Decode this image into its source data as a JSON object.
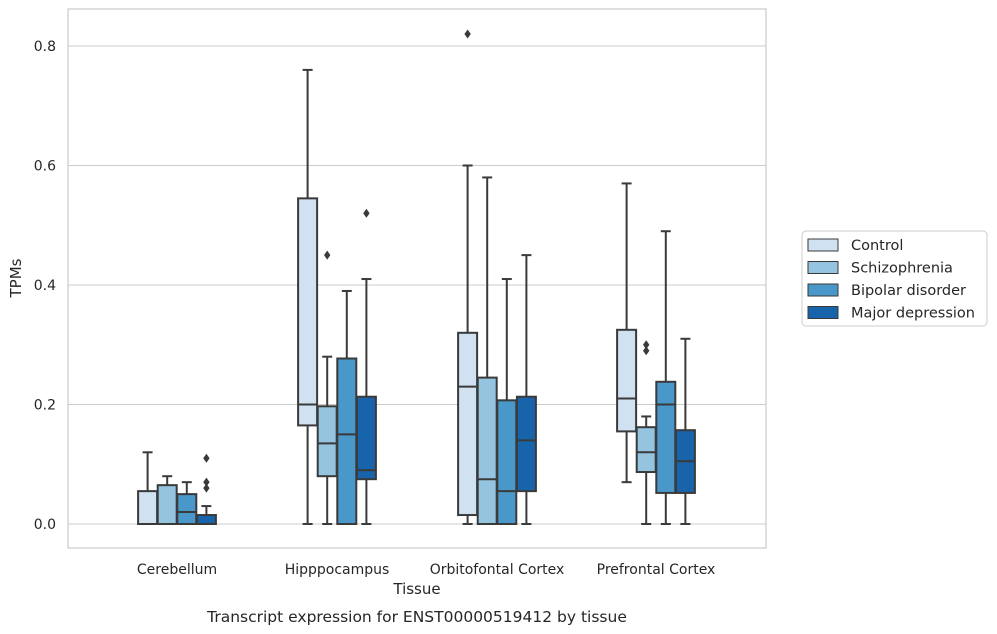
{
  "chart_data": {
    "type": "box",
    "xlabel": "Tissue",
    "ylabel": "TPMs",
    "caption": "Transcript expression for ENST00000519412 by tissue",
    "ylim": [
      -0.04,
      0.862
    ],
    "yticks": [
      "0.0",
      "0.2",
      "0.4",
      "0.6",
      "0.8"
    ],
    "ytick_values": [
      0.0,
      0.2,
      0.4,
      0.6,
      0.8
    ],
    "grid": "horizontal",
    "legend_position": "right-outside",
    "categories": [
      "Cerebellum",
      "Hipppocampus",
      "Orbitofontal Cortex",
      "Prefrontal Cortex"
    ],
    "series": [
      {
        "name": "Control",
        "color": "#d0e1f2",
        "boxes": [
          {
            "whisker_low": 0.0,
            "q1": 0.0,
            "median": 0.0,
            "q3": 0.055,
            "whisker_high": 0.12,
            "outliers": []
          },
          {
            "whisker_low": 0.0,
            "q1": 0.165,
            "median": 0.2,
            "q3": 0.545,
            "whisker_high": 0.76,
            "outliers": []
          },
          {
            "whisker_low": 0.0,
            "q1": 0.015,
            "median": 0.23,
            "q3": 0.32,
            "whisker_high": 0.6,
            "outliers": [
              0.82
            ]
          },
          {
            "whisker_low": 0.07,
            "q1": 0.155,
            "median": 0.21,
            "q3": 0.325,
            "whisker_high": 0.57,
            "outliers": []
          }
        ]
      },
      {
        "name": "Schizophrenia",
        "color": "#94c4df",
        "boxes": [
          {
            "whisker_low": 0.0,
            "q1": 0.0,
            "median": 0.0,
            "q3": 0.065,
            "whisker_high": 0.08,
            "outliers": []
          },
          {
            "whisker_low": 0.0,
            "q1": 0.08,
            "median": 0.135,
            "q3": 0.197,
            "whisker_high": 0.28,
            "outliers": [
              0.45
            ]
          },
          {
            "whisker_low": 0.0,
            "q1": 0.0,
            "median": 0.075,
            "q3": 0.245,
            "whisker_high": 0.58,
            "outliers": []
          },
          {
            "whisker_low": 0.0,
            "q1": 0.087,
            "median": 0.12,
            "q3": 0.162,
            "whisker_high": 0.18,
            "outliers": [
              0.29,
              0.3
            ]
          }
        ]
      },
      {
        "name": "Bipolar disorder",
        "color": "#4a98c9",
        "boxes": [
          {
            "whisker_low": 0.0,
            "q1": 0.0,
            "median": 0.02,
            "q3": 0.05,
            "whisker_high": 0.07,
            "outliers": []
          },
          {
            "whisker_low": 0.0,
            "q1": 0.0,
            "median": 0.15,
            "q3": 0.277,
            "whisker_high": 0.39,
            "outliers": []
          },
          {
            "whisker_low": 0.0,
            "q1": 0.0,
            "median": 0.055,
            "q3": 0.207,
            "whisker_high": 0.41,
            "outliers": []
          },
          {
            "whisker_low": 0.0,
            "q1": 0.052,
            "median": 0.2,
            "q3": 0.238,
            "whisker_high": 0.49,
            "outliers": []
          }
        ]
      },
      {
        "name": "Major depression",
        "color": "#1764ab",
        "boxes": [
          {
            "whisker_low": 0.0,
            "q1": 0.0,
            "median": 0.0,
            "q3": 0.015,
            "whisker_high": 0.03,
            "outliers": [
              0.06,
              0.07,
              0.11
            ]
          },
          {
            "whisker_low": 0.0,
            "q1": 0.075,
            "median": 0.09,
            "q3": 0.213,
            "whisker_high": 0.41,
            "outliers": [
              0.52
            ]
          },
          {
            "whisker_low": 0.0,
            "q1": 0.055,
            "median": 0.14,
            "q3": 0.213,
            "whisker_high": 0.45,
            "outliers": []
          },
          {
            "whisker_low": 0.0,
            "q1": 0.052,
            "median": 0.105,
            "q3": 0.157,
            "whisker_high": 0.31,
            "outliers": []
          }
        ]
      }
    ]
  }
}
